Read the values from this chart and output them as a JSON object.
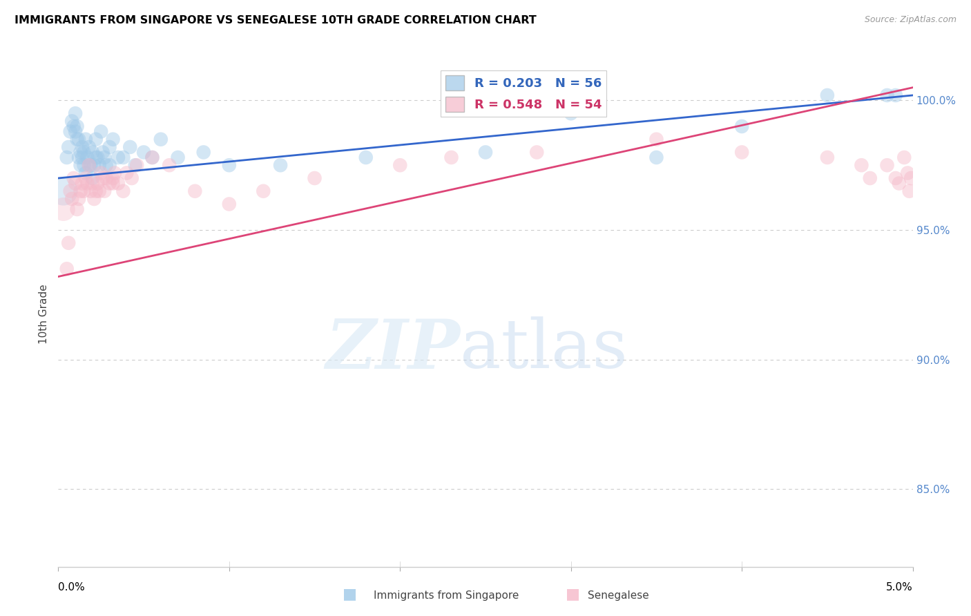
{
  "title": "IMMIGRANTS FROM SINGAPORE VS SENEGALESE 10TH GRADE CORRELATION CHART",
  "source": "Source: ZipAtlas.com",
  "ylabel": "10th Grade",
  "xmin": 0.0,
  "xmax": 5.0,
  "ymin": 82.0,
  "ymax": 101.5,
  "yticks": [
    85.0,
    90.0,
    95.0,
    100.0
  ],
  "ytick_labels": [
    "85.0%",
    "90.0%",
    "95.0%",
    "100.0%"
  ],
  "legend_blue_r": "0.203",
  "legend_blue_n": "56",
  "legend_pink_r": "0.548",
  "legend_pink_n": "54",
  "legend_label_blue": "Immigrants from Singapore",
  "legend_label_pink": "Senegalese",
  "blue_color": "#9ec8e8",
  "pink_color": "#f5b8c8",
  "trendline_blue_color": "#3366cc",
  "trendline_pink_color": "#dd4477",
  "blue_trend_x0": 0.0,
  "blue_trend_y0": 97.0,
  "blue_trend_x1": 5.0,
  "blue_trend_y1": 100.2,
  "pink_trend_x0": 0.0,
  "pink_trend_y0": 93.2,
  "pink_trend_x1": 5.0,
  "pink_trend_y1": 100.5,
  "blue_x": [
    0.05,
    0.06,
    0.07,
    0.08,
    0.09,
    0.1,
    0.1,
    0.11,
    0.11,
    0.12,
    0.12,
    0.13,
    0.13,
    0.14,
    0.14,
    0.15,
    0.15,
    0.16,
    0.16,
    0.17,
    0.18,
    0.18,
    0.19,
    0.2,
    0.2,
    0.21,
    0.22,
    0.22,
    0.23,
    0.24,
    0.25,
    0.26,
    0.27,
    0.28,
    0.3,
    0.3,
    0.32,
    0.35,
    0.38,
    0.42,
    0.45,
    0.5,
    0.55,
    0.6,
    0.7,
    0.85,
    1.0,
    1.3,
    1.8,
    2.5,
    3.0,
    3.5,
    4.0,
    4.5,
    4.85,
    4.9
  ],
  "blue_y": [
    97.8,
    98.2,
    98.8,
    99.2,
    99.0,
    99.5,
    98.8,
    98.5,
    99.0,
    98.5,
    97.8,
    98.0,
    97.5,
    98.2,
    97.8,
    97.5,
    98.0,
    97.2,
    98.5,
    97.8,
    97.5,
    98.2,
    97.5,
    97.0,
    98.0,
    97.5,
    97.8,
    98.5,
    97.8,
    97.5,
    98.8,
    98.0,
    97.8,
    97.5,
    97.5,
    98.2,
    98.5,
    97.8,
    97.8,
    98.2,
    97.5,
    98.0,
    97.8,
    98.5,
    97.8,
    98.0,
    97.5,
    97.5,
    97.8,
    98.0,
    99.5,
    97.8,
    99.0,
    100.2,
    100.2,
    100.2
  ],
  "blue_size_large": [
    0.05,
    0.06
  ],
  "pink_x": [
    0.05,
    0.06,
    0.07,
    0.08,
    0.09,
    0.1,
    0.11,
    0.12,
    0.13,
    0.14,
    0.15,
    0.16,
    0.17,
    0.18,
    0.19,
    0.2,
    0.21,
    0.22,
    0.23,
    0.24,
    0.25,
    0.26,
    0.27,
    0.28,
    0.3,
    0.32,
    0.32,
    0.33,
    0.35,
    0.38,
    0.4,
    0.43,
    0.46,
    0.55,
    0.65,
    0.8,
    1.0,
    1.2,
    1.5,
    2.0,
    2.3,
    2.8,
    3.5,
    4.0,
    4.5,
    4.7,
    4.75,
    4.85,
    4.9,
    4.92,
    4.95,
    4.97,
    4.98,
    4.99
  ],
  "pink_y": [
    93.5,
    94.5,
    96.5,
    96.2,
    97.0,
    96.8,
    95.8,
    96.2,
    96.5,
    96.8,
    96.5,
    97.0,
    96.8,
    97.5,
    96.5,
    96.8,
    96.2,
    96.5,
    96.8,
    96.5,
    97.2,
    97.0,
    96.5,
    97.0,
    96.8,
    97.0,
    96.8,
    97.2,
    96.8,
    96.5,
    97.2,
    97.0,
    97.5,
    97.8,
    97.5,
    96.5,
    96.0,
    96.5,
    97.0,
    97.5,
    97.8,
    98.0,
    98.5,
    98.0,
    97.8,
    97.5,
    97.0,
    97.5,
    97.0,
    96.8,
    97.8,
    97.2,
    96.5,
    97.0
  ]
}
